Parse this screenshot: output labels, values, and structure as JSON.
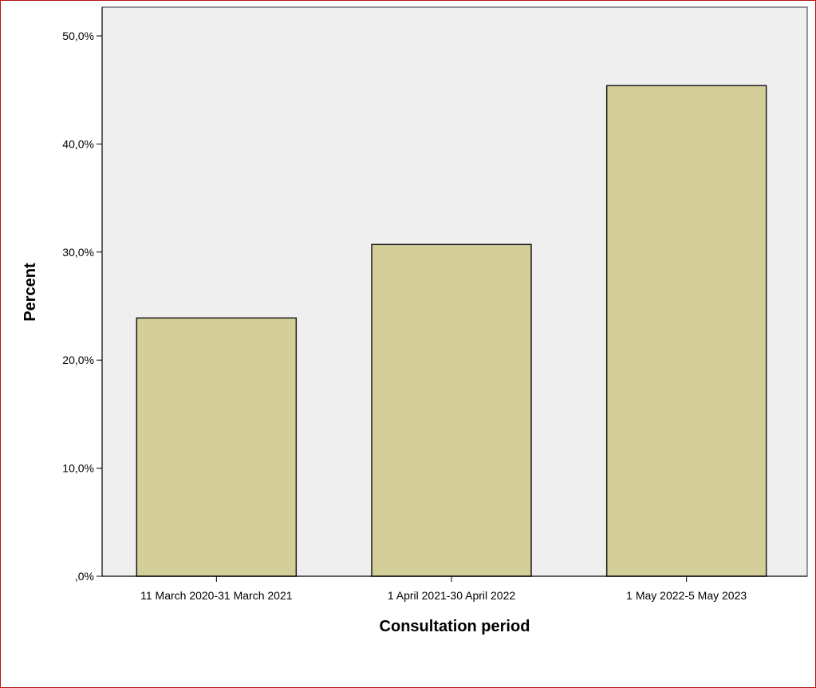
{
  "chart_data": {
    "type": "bar",
    "categories": [
      "11 March 2020-31 March 2021",
      "1 April 2021-30 April 2022",
      "1 May 2022-5 May 2023"
    ],
    "values": [
      23.9,
      30.7,
      45.4
    ],
    "xlabel": "Consultation period",
    "ylabel": "Percent",
    "ylim": [
      0,
      50
    ],
    "yticks": [
      0,
      10,
      20,
      30,
      40,
      50
    ],
    "ytick_labels": [
      ",0%",
      "10,0%",
      "20,0%",
      "30,0%",
      "40,0%",
      "50,0%"
    ],
    "grid": false,
    "colors": {
      "bar_fill": "#d4cf98",
      "bar_stroke": "#1a1a1a",
      "plot_background": "#efeff0",
      "frame": "#b5121b"
    }
  }
}
